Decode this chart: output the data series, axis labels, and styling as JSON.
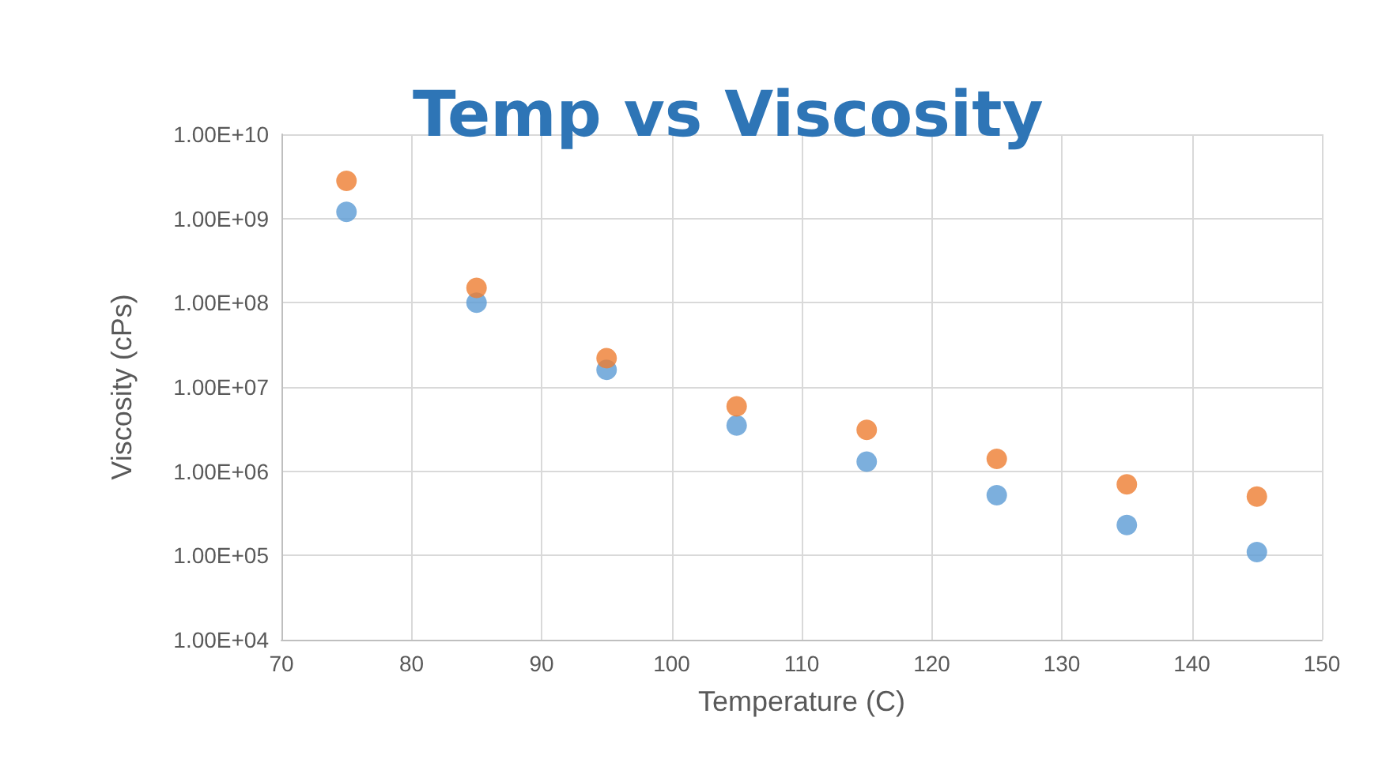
{
  "chart_data": {
    "type": "scatter",
    "title": "Temp vs Viscosity",
    "xlabel": "Temperature (C)",
    "ylabel": "Viscosity (cPs)",
    "x": [
      75,
      85,
      95,
      105,
      115,
      125,
      135,
      145
    ],
    "series": [
      {
        "color": "#5b9bd5",
        "values": [
          1200000000,
          100000000,
          16000000,
          3500000,
          1300000,
          520000,
          230000,
          110000
        ]
      },
      {
        "color": "#ed7d31",
        "values": [
          2800000000,
          150000000,
          22000000,
          5900000,
          3100000,
          1400000,
          700000,
          500000
        ]
      }
    ],
    "xlim": [
      70,
      150
    ],
    "xticks": [
      70,
      80,
      90,
      100,
      110,
      120,
      130,
      140,
      150
    ],
    "ylim": [
      10000,
      10000000000
    ],
    "yticks": [
      {
        "value": 10000,
        "label": "1.00E+04"
      },
      {
        "value": 100000,
        "label": "1.00E+05"
      },
      {
        "value": 1000000,
        "label": "1.00E+06"
      },
      {
        "value": 10000000,
        "label": "1.00E+07"
      },
      {
        "value": 100000000,
        "label": "1.00E+08"
      },
      {
        "value": 1000000000,
        "label": "1.00E+09"
      },
      {
        "value": 10000000000,
        "label": "1.00E+10"
      }
    ],
    "log": "y",
    "grid": true,
    "marker": "circle"
  }
}
